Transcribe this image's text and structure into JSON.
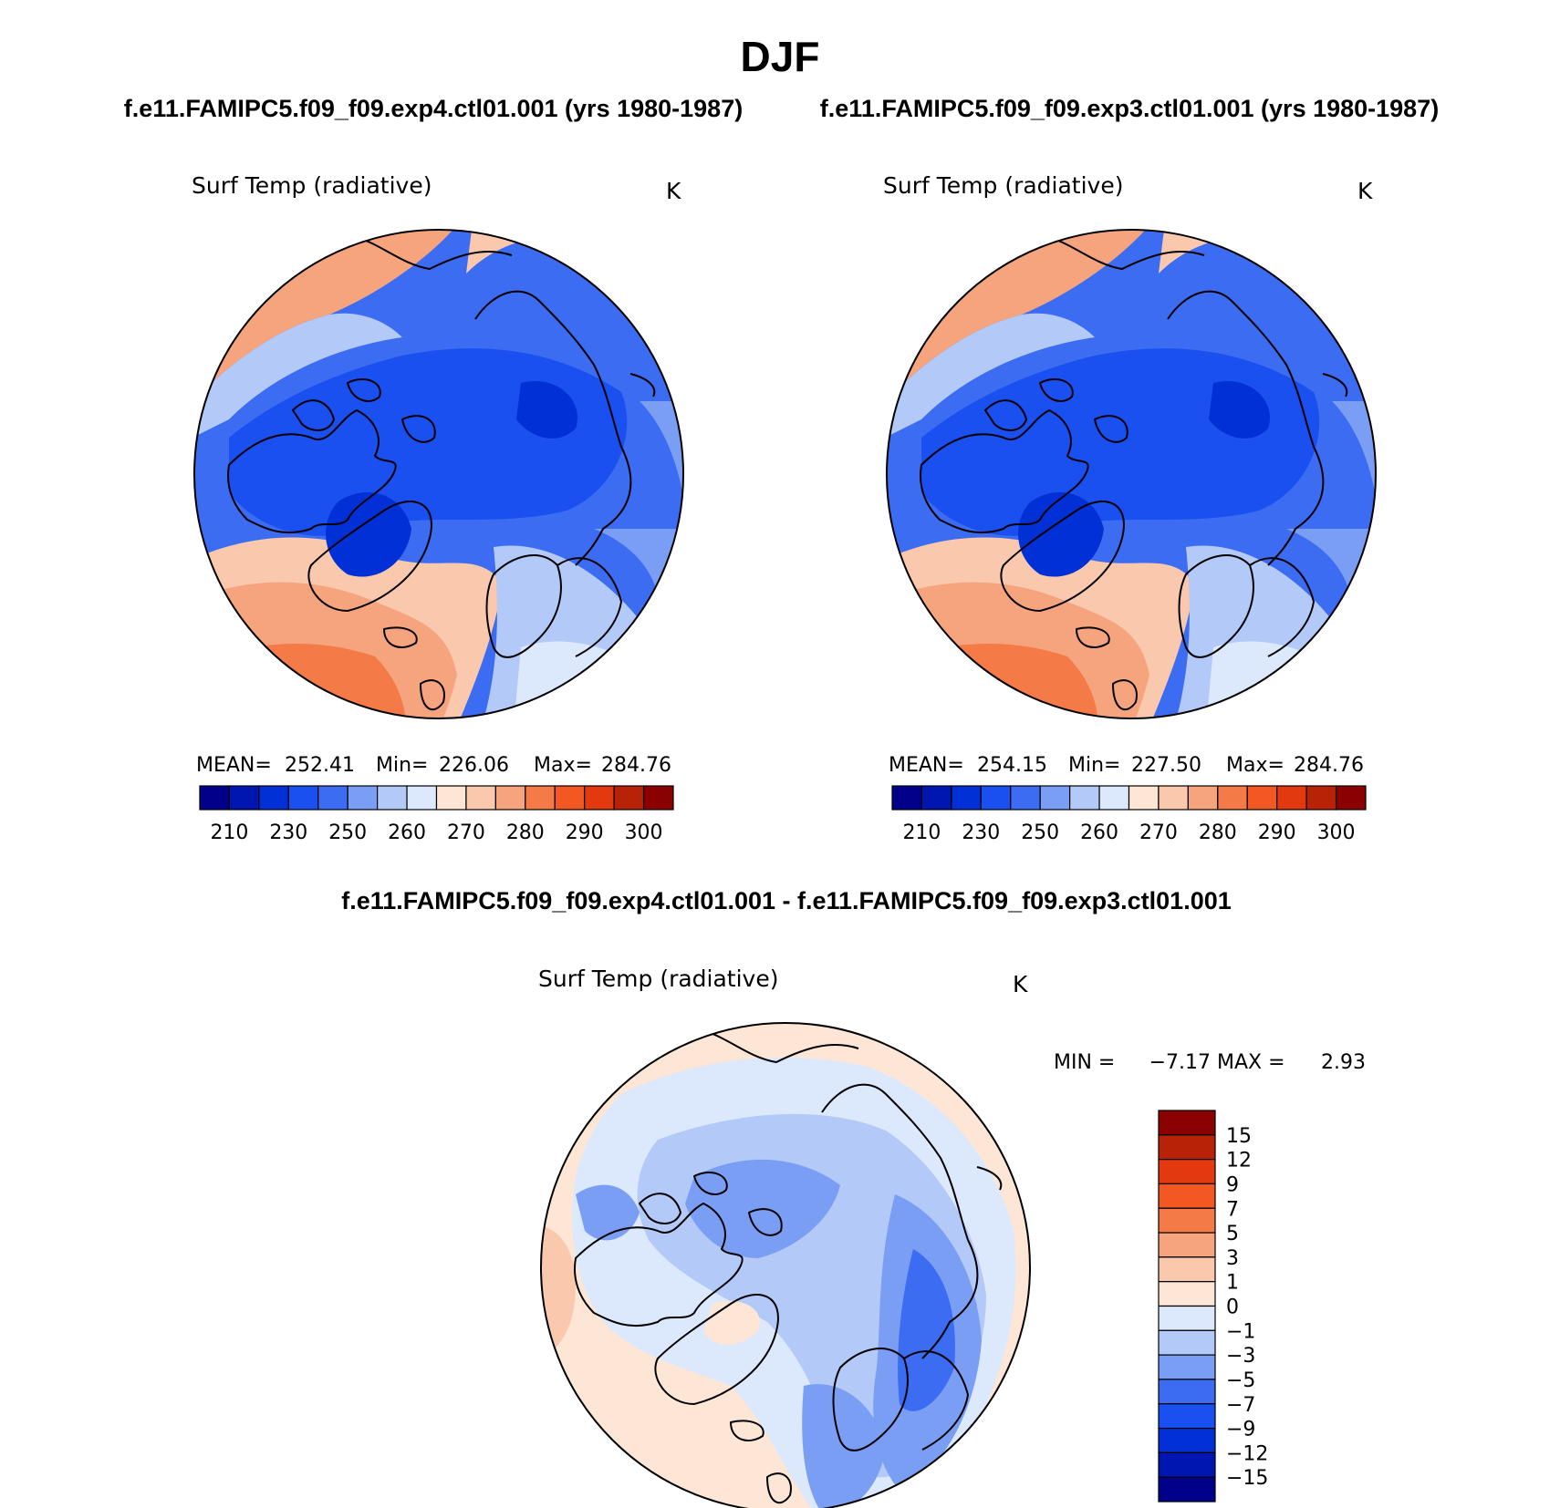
{
  "page": {
    "title": "DJF",
    "subtitle_left": "f.e11.FAMIPC5.f09_f09.exp4.ctl01.001 (yrs 1980-1987)",
    "subtitle_right": "f.e11.FAMIPC5.f09_f09.exp3.ctl01.001 (yrs 1980-1987)",
    "diff_title": "f.e11.FAMIPC5.f09_f09.exp4.ctl01.001 - f.e11.FAMIPC5.f09_f09.exp3.ctl01.001"
  },
  "panels": [
    {
      "id": "exp4",
      "variable": "Surf Temp (radiative)",
      "units": "K",
      "stats": {
        "mean_label": "MEAN=",
        "mean": "252.41",
        "min_label": "Min=",
        "min": "226.06",
        "max_label": "Max=",
        "max": "284.76"
      }
    },
    {
      "id": "exp3",
      "variable": "Surf Temp (radiative)",
      "units": "K",
      "stats": {
        "mean_label": "MEAN=",
        "mean": "254.15",
        "min_label": "Min=",
        "min": "227.50",
        "max_label": "Max=",
        "max": "284.76"
      }
    }
  ],
  "diff_panel": {
    "variable": "Surf Temp (radiative)",
    "units": "K",
    "stats": {
      "min_label": "MIN =",
      "min": "−7.17",
      "max_label": "MAX =",
      "max": "2.93"
    }
  },
  "colorbar_main": {
    "labels": [
      "210",
      "230",
      "250",
      "260",
      "270",
      "280",
      "290",
      "300"
    ],
    "colors": [
      "#00008b",
      "#0016b0",
      "#0030d6",
      "#1a4ff0",
      "#3c6cf2",
      "#7a9ef4",
      "#b3c9f7",
      "#dce8fb",
      "#fde6d6",
      "#f9c8ad",
      "#f6a47d",
      "#f47a47",
      "#f35722",
      "#e23a0e",
      "#b82308",
      "#8b0000"
    ]
  },
  "colorbar_diff": {
    "labels": [
      "15",
      "12",
      "9",
      "7",
      "5",
      "3",
      "1",
      "0",
      "−1",
      "−3",
      "−5",
      "−7",
      "−9",
      "−12",
      "−15"
    ],
    "colors": [
      "#8b0000",
      "#b82308",
      "#e23a0e",
      "#f35722",
      "#f47a47",
      "#f6a47d",
      "#f9c8ad",
      "#fde6d6",
      "#dce8fb",
      "#b3c9f7",
      "#7a9ef4",
      "#3c6cf2",
      "#1a4ff0",
      "#0030d6",
      "#0016b0",
      "#00008b"
    ]
  }
}
